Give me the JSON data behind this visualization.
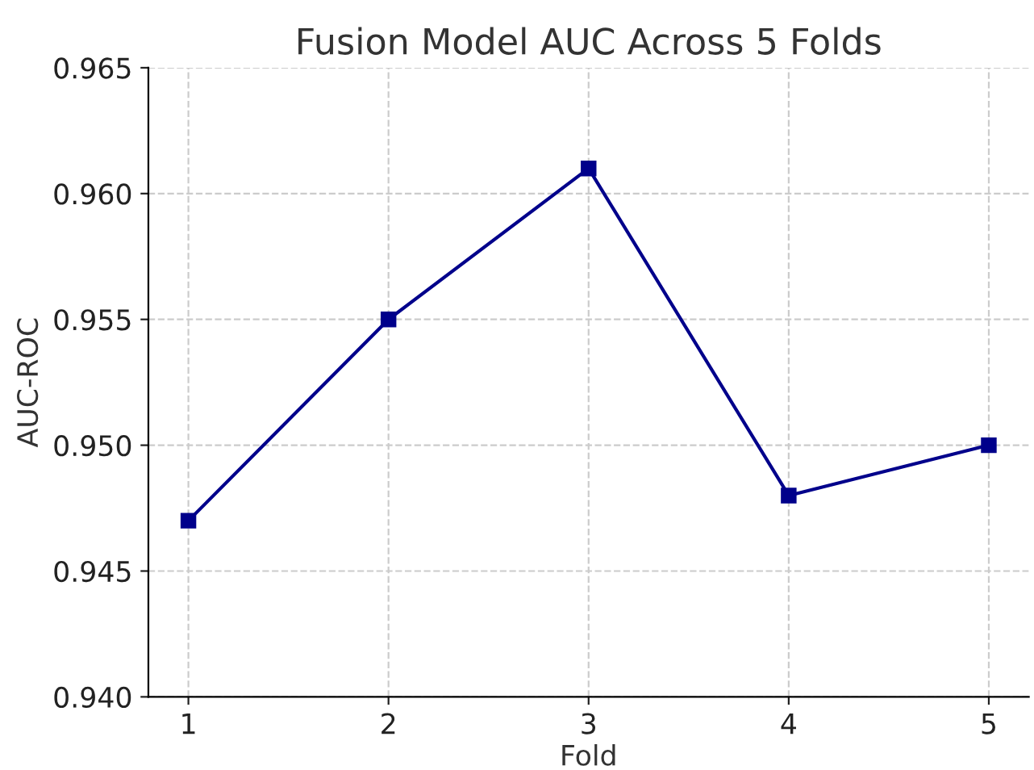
{
  "chart_data": {
    "type": "line",
    "title": "Fusion Model AUC Across 5 Folds",
    "xlabel": "Fold",
    "ylabel": "AUC-ROC",
    "x": [
      1,
      2,
      3,
      4,
      5
    ],
    "series": [
      {
        "color": "#00008b",
        "values": [
          0.947,
          0.955,
          0.961,
          0.948,
          0.95
        ]
      }
    ],
    "xlim": [
      0.8,
      5.2
    ],
    "xticks": [
      1,
      2,
      3,
      4,
      5
    ],
    "ylim": [
      0.94,
      0.965
    ],
    "yticks": [
      {
        "value": 0.94,
        "label": "0.940"
      },
      {
        "value": 0.945,
        "label": "0.945"
      },
      {
        "value": 0.95,
        "label": "0.950"
      },
      {
        "value": 0.955,
        "label": "0.955"
      },
      {
        "value": 0.96,
        "label": "0.960"
      },
      {
        "value": 0.965,
        "label": "0.965"
      }
    ],
    "grid": true,
    "marker": "square",
    "line_style": "solid"
  }
}
